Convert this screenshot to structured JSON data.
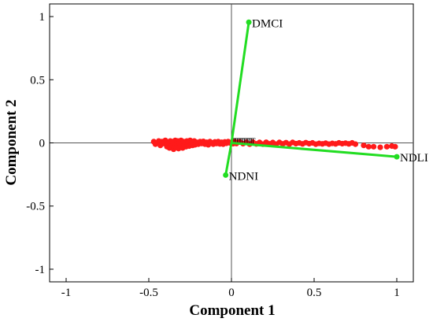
{
  "chart_data": {
    "type": "biplot",
    "title": "",
    "xlabel": "Component 1",
    "ylabel": "Component 2",
    "xlim": [
      -1.1,
      1.1
    ],
    "ylim": [
      -1.1,
      1.1
    ],
    "xticks": [
      -1,
      -0.5,
      0,
      0.5,
      1
    ],
    "yticks": [
      -1,
      -0.5,
      0,
      0.5,
      1
    ],
    "xtick_labels": [
      "-1",
      "-0.5",
      "0",
      "0.5",
      "1"
    ],
    "ytick_labels": [
      "-1",
      "-0.5",
      "0",
      "0.5",
      "1"
    ],
    "grid": false,
    "vector_color": "#22dd22",
    "point_color": "#ff1a1a",
    "vectors": [
      {
        "label": "DMCI",
        "x": 0.105,
        "y": 0.955
      },
      {
        "label": "NDLI",
        "x": 1.0,
        "y": -0.11
      },
      {
        "label": "NDNI",
        "x": -0.035,
        "y": -0.255
      }
    ],
    "scores": [
      [
        -0.47,
        0.01
      ],
      [
        -0.46,
        -0.01
      ],
      [
        -0.45,
        0.0
      ],
      [
        -0.44,
        0.015
      ],
      [
        -0.43,
        -0.02
      ],
      [
        -0.42,
        0.01
      ],
      [
        -0.41,
        -0.005
      ],
      [
        -0.4,
        0.02
      ],
      [
        -0.39,
        -0.03
      ],
      [
        -0.38,
        0.0
      ],
      [
        -0.375,
        -0.04
      ],
      [
        -0.37,
        0.015
      ],
      [
        -0.36,
        -0.02
      ],
      [
        -0.355,
        0.01
      ],
      [
        -0.35,
        -0.05
      ],
      [
        -0.345,
        0.0
      ],
      [
        -0.34,
        0.02
      ],
      [
        -0.335,
        -0.035
      ],
      [
        -0.33,
        -0.01
      ],
      [
        -0.325,
        0.015
      ],
      [
        -0.32,
        -0.045
      ],
      [
        -0.315,
        0.005
      ],
      [
        -0.31,
        -0.025
      ],
      [
        -0.305,
        0.02
      ],
      [
        -0.3,
        -0.01
      ],
      [
        -0.295,
        -0.04
      ],
      [
        -0.29,
        0.01
      ],
      [
        -0.285,
        -0.02
      ],
      [
        -0.28,
        0.0
      ],
      [
        -0.275,
        -0.03
      ],
      [
        -0.27,
        0.015
      ],
      [
        -0.265,
        -0.015
      ],
      [
        -0.26,
        0.005
      ],
      [
        -0.255,
        -0.025
      ],
      [
        -0.25,
        0.02
      ],
      [
        -0.245,
        -0.01
      ],
      [
        -0.24,
        0.01
      ],
      [
        -0.235,
        -0.02
      ],
      [
        -0.23,
        0.0
      ],
      [
        -0.225,
        0.015
      ],
      [
        -0.22,
        -0.015
      ],
      [
        -0.21,
        0.005
      ],
      [
        -0.2,
        -0.01
      ],
      [
        -0.19,
        0.01
      ],
      [
        -0.18,
        -0.005
      ],
      [
        -0.17,
        0.012
      ],
      [
        -0.16,
        -0.01
      ],
      [
        -0.15,
        0.005
      ],
      [
        -0.14,
        -0.015
      ],
      [
        -0.13,
        0.01
      ],
      [
        -0.12,
        0.0
      ],
      [
        -0.11,
        -0.01
      ],
      [
        -0.1,
        0.008
      ],
      [
        -0.09,
        -0.005
      ],
      [
        -0.08,
        0.01
      ],
      [
        -0.07,
        -0.008
      ],
      [
        -0.06,
        0.005
      ],
      [
        -0.05,
        -0.01
      ],
      [
        -0.04,
        0.008
      ],
      [
        -0.03,
        -0.003
      ],
      [
        -0.02,
        0.01
      ],
      [
        -0.01,
        0.0
      ],
      [
        0.0,
        0.005
      ],
      [
        0.01,
        -0.006
      ],
      [
        0.02,
        0.01
      ],
      [
        0.03,
        -0.005
      ],
      [
        0.05,
        0.008
      ],
      [
        0.07,
        -0.006
      ],
      [
        0.09,
        0.005
      ],
      [
        0.11,
        -0.01
      ],
      [
        0.13,
        0.006
      ],
      [
        0.15,
        -0.008
      ],
      [
        0.17,
        0.004
      ],
      [
        0.19,
        -0.01
      ],
      [
        0.21,
        0.005
      ],
      [
        0.23,
        -0.008
      ],
      [
        0.25,
        0.003
      ],
      [
        0.27,
        -0.01
      ],
      [
        0.29,
        0.004
      ],
      [
        0.31,
        -0.008
      ],
      [
        0.33,
        0.002
      ],
      [
        0.35,
        -0.01
      ],
      [
        0.37,
        0.004
      ],
      [
        0.39,
        -0.006
      ],
      [
        0.41,
        0.0
      ],
      [
        0.43,
        -0.008
      ],
      [
        0.45,
        0.002
      ],
      [
        0.47,
        -0.006
      ],
      [
        0.49,
        0.0
      ],
      [
        0.51,
        -0.01
      ],
      [
        0.53,
        -0.004
      ],
      [
        0.55,
        -0.008
      ],
      [
        0.57,
        -0.002
      ],
      [
        0.59,
        -0.01
      ],
      [
        0.61,
        -0.004
      ],
      [
        0.63,
        -0.008
      ],
      [
        0.65,
        0.0
      ],
      [
        0.67,
        -0.006
      ],
      [
        0.69,
        -0.002
      ],
      [
        0.71,
        -0.008
      ],
      [
        0.73,
        0.0
      ],
      [
        0.75,
        -0.01
      ],
      [
        0.8,
        -0.02
      ],
      [
        0.83,
        -0.03
      ],
      [
        0.86,
        -0.03
      ],
      [
        0.9,
        -0.035
      ],
      [
        0.94,
        -0.03
      ],
      [
        0.97,
        -0.025
      ],
      [
        0.99,
        -0.03
      ]
    ],
    "marker_glyph": "T"
  }
}
